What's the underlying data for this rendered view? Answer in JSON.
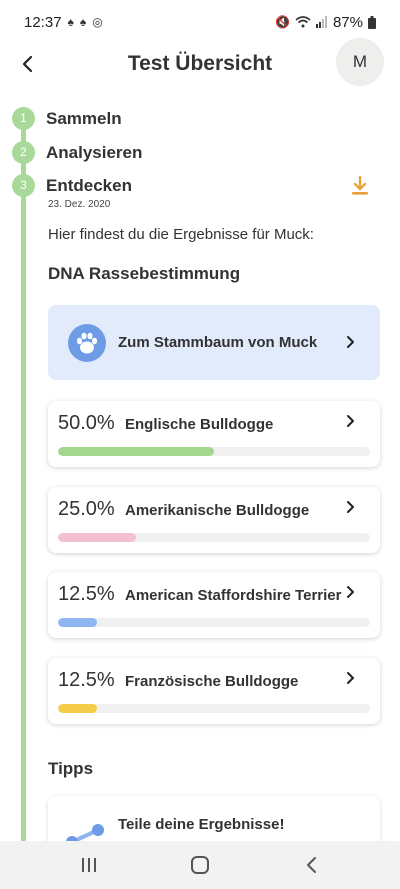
{
  "status_bar": {
    "time": "12:37",
    "battery": "87%"
  },
  "header": {
    "title": "Test Übersicht",
    "avatar_initial": "M"
  },
  "steps": [
    {
      "number": "1",
      "label": "Sammeln"
    },
    {
      "number": "2",
      "label": "Analysieren"
    },
    {
      "number": "3",
      "label": "Entdecken",
      "date": "23. Dez. 2020"
    }
  ],
  "intro_text": "Hier findest du die Ergebnisse für Muck:",
  "dna_section": {
    "title": "DNA Rassebestimmung"
  },
  "family_tree_card": {
    "label": "Zum Stammbaum von Muck"
  },
  "breeds": [
    {
      "percent_label": "50.0%",
      "name": "Englische Bulldogge",
      "fraction": 0.5,
      "color": "#a3d68f"
    },
    {
      "percent_label": "25.0%",
      "name": "Amerikanische Bulldogge",
      "fraction": 0.25,
      "color": "#f2bfd3"
    },
    {
      "percent_label": "12.5%",
      "name": "American Staffordshire Terrier",
      "fraction": 0.125,
      "color": "#8fb6f0"
    },
    {
      "percent_label": "12.5%",
      "name": "Französische Bulldogge",
      "fraction": 0.125,
      "color": "#f5cd4a"
    }
  ],
  "tips": {
    "title": "Tipps",
    "card_title": "Teile deine Ergebnisse!"
  },
  "colors": {
    "timeline": "#a9d99a",
    "accent_download": "#e8a23a",
    "tree_card_bg": "#e1ebfb",
    "paw": "#6e9be6"
  },
  "icons": {
    "back": "chevron-left-icon",
    "download": "download-icon",
    "paw": "paw-icon",
    "chevron": "chevron-right-icon",
    "share": "share-icon",
    "nav_recents": "recent-apps-icon",
    "nav_home": "home-icon",
    "nav_back": "back-icon"
  }
}
